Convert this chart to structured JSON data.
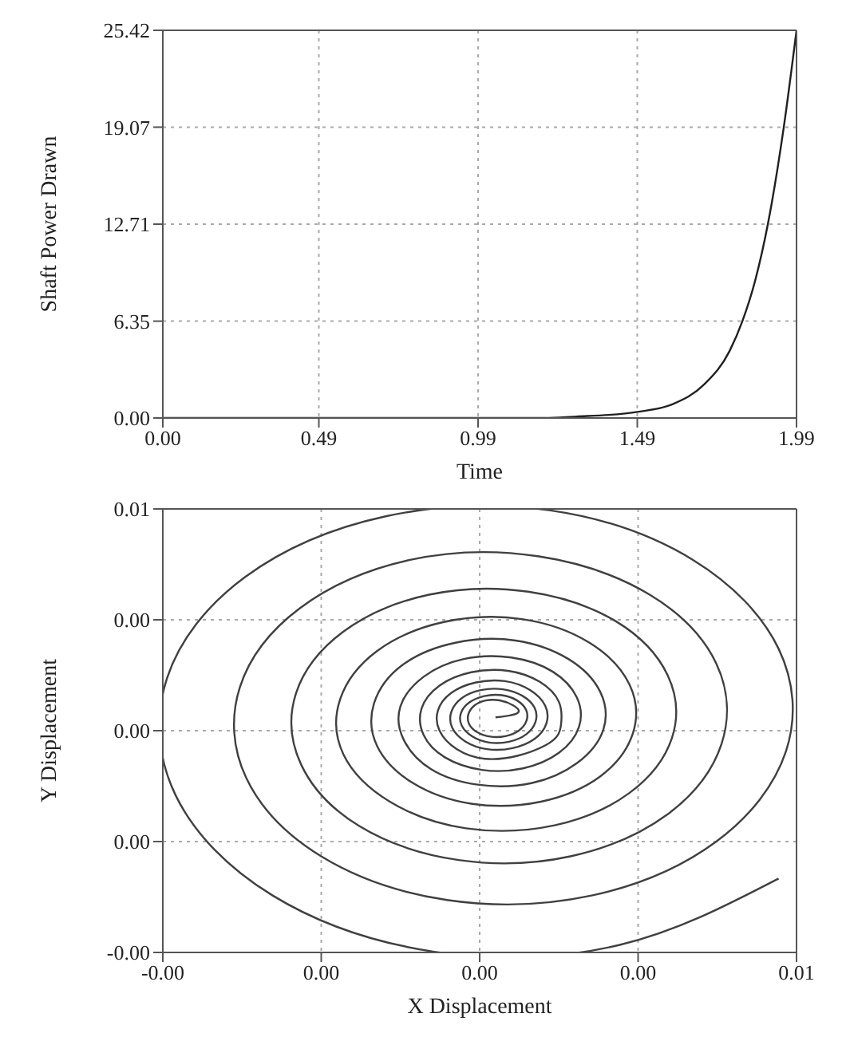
{
  "chart_data": [
    {
      "type": "line",
      "xlabel": "Time",
      "ylabel": "Shaft Power Drawn",
      "x": [
        0,
        0.5,
        1.0,
        1.2,
        1.3,
        1.4,
        1.49,
        1.6,
        1.7,
        1.78,
        1.82,
        1.86,
        1.9,
        1.95,
        1.99
      ],
      "series": [
        {
          "color": "#202020",
          "values": [
            0,
            0,
            0,
            0,
            0.1,
            0.2,
            0.4,
            0.9,
            2.2,
            4.4,
            6.35,
            9.0,
            12.71,
            19.07,
            25.42
          ]
        }
      ],
      "xlim": [
        0,
        1.99
      ],
      "xticks": [
        {
          "value": 0,
          "label": "0.00"
        },
        0.49,
        0.99,
        1.49,
        1.99
      ],
      "ylim": [
        0,
        25.42
      ],
      "yticks": [
        {
          "value": 0,
          "label": "0.00"
        },
        6.35,
        12.71,
        19.07,
        25.42
      ],
      "grid": true
    },
    {
      "type": "line",
      "xlabel": "X Displacement",
      "ylabel": "Y Displacement",
      "x": [
        0.00483,
        0.00332,
        0.00157,
        4e-05,
        -0.00088,
        -0.00096,
        -0.00022,
        0.00111,
        0.00267,
        0.00402,
        0.00483,
        0.0049,
        0.00424,
        0.00306,
        0.00169,
        0.0005,
        -0.00021,
        -0.00027,
        0.0003,
        0.00134,
        0.00255,
        0.00361,
        0.00424,
        0.00429,
        0.00378,
        0.00286,
        0.0018,
        0.00086,
        0.00031,
        0.00026,
        0.00071,
        0.00152,
        0.00246,
        0.00329,
        0.00378,
        0.00382,
        0.00342,
        0.00271,
        0.00187,
        0.00115,
        0.00071,
        0.00068,
        0.00103,
        0.00166,
        0.0024,
        0.00304,
        0.00342,
        0.00345,
        0.00314,
        0.00258,
        0.00193,
        0.00137,
        0.00103,
        0.001,
        0.00127,
        0.00177,
        0.00234,
        0.00284,
        0.00314,
        0.00317,
        0.00292,
        0.00249,
        0.00198,
        0.00154,
        0.00128,
        0.00125,
        0.00147,
        0.00185,
        0.0023,
        0.00269,
        0.00292,
        0.00294,
        0.00275,
        0.00241,
        0.00202,
        0.00167,
        0.00147,
        0.00145,
        0.00162,
        0.00192,
        0.00227,
        0.00257,
        0.00275,
        0.00277,
        0.00262,
        0.00205,
        0.00162,
        0.00173,
        0.00224,
        0.00262,
        0.00252,
        0.00207,
        0.00174,
        0.00183,
        0.00222,
        0.00252,
        0.00244,
        0.00209,
        0.00183,
        0.0019,
        0.00221,
        0.00244,
        0.00237,
        0.0021,
        0.0019,
        0.00195,
        0.00219,
        0.00237,
        0.00215
      ],
      "series": [
        {
          "color": "#404040",
          "values": [
            0,
            -0.0009,
            -0.00099,
            -0.00023,
            0.00113,
            0.00271,
            0.00408,
            0.0049,
            0.00498,
            0.00431,
            0.00311,
            0.00172,
            0.0005,
            -0.00023,
            -0.00029,
            0.0003,
            0.00136,
            0.00259,
            0.00366,
            0.00431,
            0.00436,
            0.00384,
            0.00291,
            0.00182,
            0.00087,
            0.0003,
            0.00025,
            0.00071,
            0.00154,
            0.0025,
            0.00334,
            0.00384,
            0.00388,
            0.00348,
            0.00275,
            0.0019,
            0.00116,
            0.00072,
            0.00068,
            0.00104,
            0.00168,
            0.00243,
            0.00308,
            0.00347,
            0.00351,
            0.00319,
            0.00262,
            0.00196,
            0.00138,
            0.00104,
            0.00101,
            0.00129,
            0.00179,
            0.00237,
            0.00289,
            0.00319,
            0.00322,
            0.00297,
            0.00253,
            0.00201,
            0.00156,
            0.00129,
            0.00127,
            0.00148,
            0.00188,
            0.00233,
            0.00273,
            0.00297,
            0.00299,
            0.0028,
            0.00245,
            0.00205,
            0.0017,
            0.00149,
            0.00147,
            0.00164,
            0.00194,
            0.0023,
            0.00261,
            0.00279,
            0.00281,
            0.00266,
            0.00239,
            0.00208,
            0.0018,
            0.00162,
            0.002,
            0.00251,
            0.00267,
            0.00234,
            0.00189,
            0.00175,
            0.00204,
            0.00244,
            0.00256,
            0.00231,
            0.00195,
            0.00184,
            0.00207,
            0.00238,
            0.00248,
            0.00228,
            0.002,
            0.00192,
            0.00209,
            0.00234,
            0.00241,
            0.00226,
            0.00218
          ]
        }
      ],
      "xlim": [
        -0.001,
        0.005
      ],
      "xticks": [
        {
          "value": -0.001,
          "label": "-0.00"
        },
        {
          "value": 0.0005,
          "label": "0.00"
        },
        {
          "value": 0.002,
          "label": "0.00"
        },
        {
          "value": 0.0035,
          "label": "0.00"
        },
        {
          "value": 0.005,
          "label": "0.01"
        }
      ],
      "ylim": [
        -0.001,
        0.005
      ],
      "yticks": [
        {
          "value": -0.001,
          "label": "-0.00"
        },
        {
          "value": 0.0005,
          "label": "0.00"
        },
        {
          "value": 0.002,
          "label": "0.00"
        },
        {
          "value": 0.0035,
          "label": "0.00"
        },
        {
          "value": 0.005,
          "label": "0.01"
        }
      ],
      "grid": true
    }
  ]
}
